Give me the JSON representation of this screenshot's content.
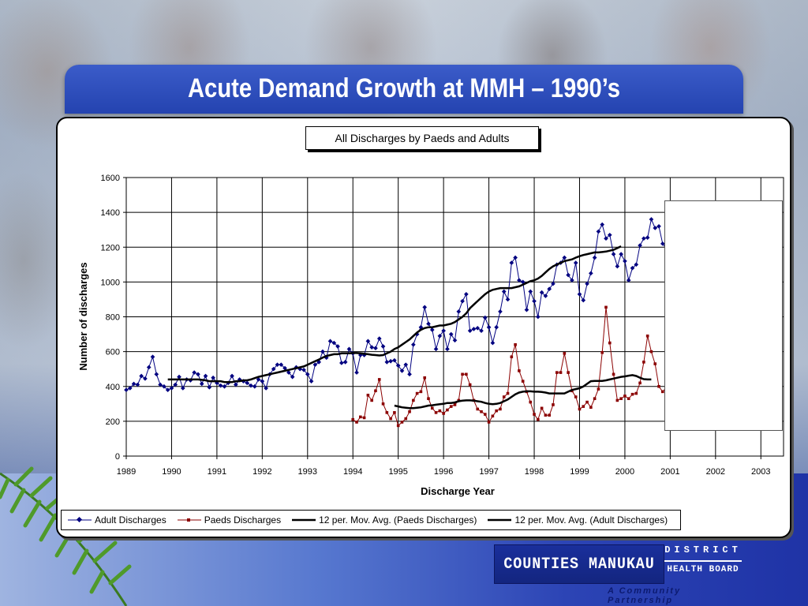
{
  "slide": {
    "title": "Acute Demand Growth at MMH – 1990’s"
  },
  "logo": {
    "name": "COUNTIES MANUKAU",
    "district": "DISTRICT",
    "health_board": "HEALTH BOARD",
    "tagline": "A Community Partnership"
  },
  "colors": {
    "adult": "#000080",
    "paeds": "#8b0000",
    "avg": "#000000",
    "title_bar": "#2a4bb8"
  },
  "chart_data": {
    "type": "line",
    "title": "All Discharges by Paeds and Adults",
    "xlabel": "Discharge Year",
    "ylabel": "Number of discharges",
    "xlim": [
      1989,
      2003.5
    ],
    "ylim": [
      0,
      1600
    ],
    "yticks": [
      0,
      200,
      400,
      600,
      800,
      1000,
      1200,
      1400,
      1600
    ],
    "xticks": [
      1989,
      1990,
      1991,
      1992,
      1993,
      1994,
      1995,
      1996,
      1997,
      1998,
      1999,
      2000,
      2001,
      2002,
      2003
    ],
    "grid": true,
    "legend_position": "bottom",
    "series": [
      {
        "name": "Adult Discharges",
        "marker": "diamond",
        "x_start": 1989.0,
        "step": 0.0833333,
        "values": [
          380,
          390,
          415,
          410,
          460,
          445,
          510,
          570,
          470,
          410,
          400,
          380,
          390,
          410,
          455,
          390,
          440,
          435,
          480,
          470,
          415,
          460,
          395,
          450,
          420,
          405,
          400,
          420,
          460,
          410,
          440,
          430,
          420,
          405,
          400,
          440,
          430,
          390,
          470,
          500,
          525,
          525,
          505,
          480,
          455,
          510,
          500,
          495,
          470,
          430,
          525,
          540,
          600,
          565,
          660,
          650,
          630,
          535,
          540,
          615,
          590,
          480,
          580,
          580,
          660,
          625,
          620,
          675,
          630,
          540,
          545,
          550,
          520,
          490,
          525,
          470,
          640,
          700,
          740,
          855,
          760,
          725,
          615,
          690,
          720,
          615,
          700,
          665,
          830,
          890,
          930,
          720,
          730,
          735,
          720,
          795,
          740,
          650,
          740,
          830,
          945,
          900,
          1110,
          1140,
          1010,
          1000,
          840,
          945,
          890,
          800,
          940,
          920,
          960,
          990,
          1100,
          1110,
          1140,
          1040,
          1010,
          1110,
          930,
          895,
          990,
          1050,
          1140,
          1290,
          1330,
          1250,
          1270,
          1160,
          1090,
          1160,
          1120,
          1010,
          1080,
          1100,
          1210,
          1250,
          1255,
          1360,
          1310,
          1320,
          1220,
          1190
        ]
      },
      {
        "name": "Paeds Discharges",
        "marker": "square",
        "x_start": 1994.0,
        "step": 0.0833333,
        "values": [
          210,
          195,
          225,
          220,
          350,
          320,
          375,
          440,
          300,
          250,
          215,
          250,
          175,
          195,
          215,
          255,
          320,
          360,
          370,
          450,
          330,
          275,
          250,
          260,
          245,
          265,
          285,
          295,
          320,
          470,
          470,
          410,
          320,
          270,
          255,
          240,
          195,
          230,
          260,
          270,
          340,
          360,
          570,
          640,
          490,
          430,
          370,
          310,
          240,
          210,
          275,
          235,
          235,
          295,
          480,
          480,
          590,
          480,
          375,
          340,
          270,
          285,
          310,
          280,
          330,
          385,
          595,
          855,
          650,
          470,
          320,
          330,
          345,
          330,
          355,
          360,
          420,
          540,
          690,
          600,
          530,
          400,
          370,
          395
        ]
      },
      {
        "name": "12 per. Mov. Avg. (Paeds Discharges)",
        "x_start": 1994.9167,
        "step": 0.0833333,
        "values": [
          290,
          285,
          280,
          278,
          275,
          275,
          278,
          280,
          285,
          290,
          292,
          295,
          298,
          300,
          305,
          305,
          308,
          315,
          318,
          320,
          320,
          318,
          315,
          312,
          305,
          300,
          298,
          300,
          305,
          315,
          325,
          340,
          355,
          365,
          370,
          372,
          372,
          370,
          370,
          368,
          365,
          360,
          360,
          360,
          360,
          360,
          370,
          380,
          385,
          390,
          400,
          415,
          430,
          432,
          432,
          432,
          435,
          440,
          445,
          450,
          455,
          458,
          462,
          465,
          460,
          450,
          442,
          440,
          440
        ]
      },
      {
        "name": "12 per. Mov. Avg. (Adult Discharges)",
        "x_start": 1989.9167,
        "step": 0.0833333,
        "values": [
          440,
          440,
          440,
          440,
          440,
          440,
          440,
          440,
          440,
          438,
          435,
          430,
          430,
          430,
          430,
          425,
          425,
          425,
          430,
          430,
          435,
          435,
          440,
          448,
          455,
          460,
          465,
          470,
          475,
          480,
          485,
          490,
          495,
          500,
          505,
          510,
          515,
          525,
          535,
          545,
          555,
          565,
          575,
          580,
          585,
          585,
          590,
          590,
          590,
          592,
          592,
          590,
          588,
          585,
          582,
          580,
          578,
          580,
          590,
          600,
          615,
          625,
          640,
          655,
          670,
          690,
          710,
          725,
          735,
          740,
          740,
          745,
          750,
          750,
          755,
          760,
          770,
          785,
          800,
          820,
          850,
          870,
          890,
          910,
          930,
          945,
          955,
          960,
          965,
          965,
          965,
          965,
          970,
          975,
          985,
          995,
          1005,
          1010,
          1020,
          1035,
          1055,
          1075,
          1090,
          1100,
          1110,
          1120,
          1125,
          1130,
          1140,
          1148,
          1155,
          1160,
          1165,
          1170,
          1170,
          1172,
          1175,
          1180,
          1185,
          1195,
          1205
        ]
      }
    ]
  }
}
